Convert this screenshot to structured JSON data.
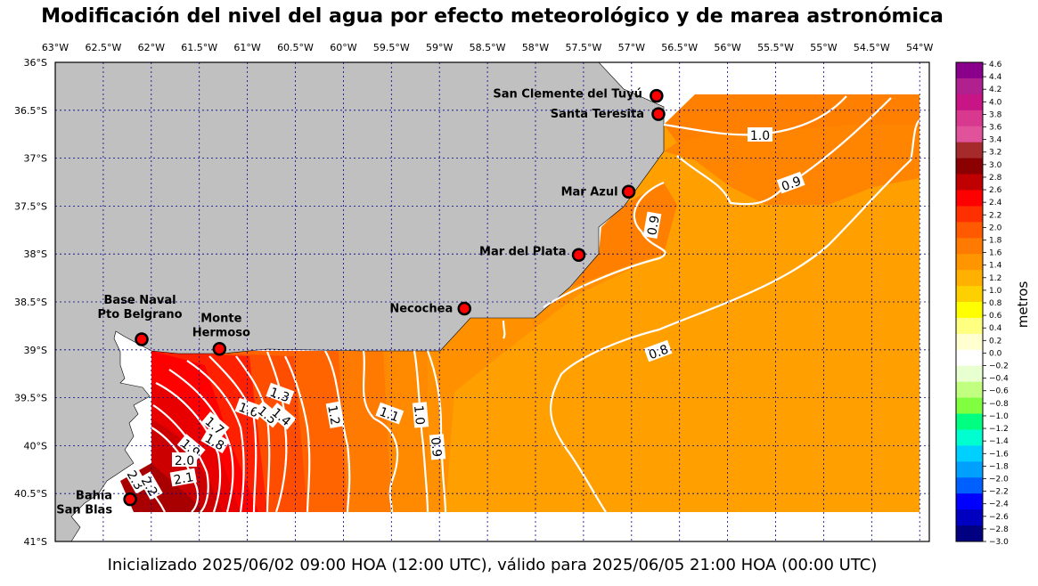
{
  "title": "Modificación del nivel del agua por efecto meteorológico y de marea astronómica",
  "footer": "Inicializado 2025/06/02 09:00 HOA (12:00 UTC), válido para 2025/06/05 21:00 HOA (00:00 UTC)",
  "lon_labels": [
    "63°W",
    "62.5°W",
    "62°W",
    "61.5°W",
    "61°W",
    "60.5°W",
    "60°W",
    "59.5°W",
    "59°W",
    "58.5°W",
    "58°W",
    "57.5°W",
    "57°W",
    "56.5°W",
    "56°W",
    "55.5°W",
    "55°W",
    "54.5°W",
    "54°W"
  ],
  "lat_labels": [
    "36°S",
    "36.5°S",
    "37°S",
    "37.5°S",
    "38°S",
    "38.5°S",
    "39°S",
    "39.5°S",
    "40°S",
    "40.5°S",
    "41°S"
  ],
  "cities": [
    {
      "name": "San Clemente del Tuyú",
      "lon": -56.74,
      "lat": -36.35
    },
    {
      "name": "Santa Teresita",
      "lon": -56.72,
      "lat": -36.54
    },
    {
      "name": "Mar Azul",
      "lon": -57.03,
      "lat": -37.35
    },
    {
      "name": "Mar del Plata",
      "lon": -57.55,
      "lat": -38.01
    },
    {
      "name": "Necochea",
      "lon": -58.74,
      "lat": -38.57
    },
    {
      "name": "Base Naval Pto Belgrano",
      "lon": -62.1,
      "lat": -38.89
    },
    {
      "name": "Monte Hermoso",
      "lon": -61.29,
      "lat": -38.99
    },
    {
      "name": "Bahía San Blas",
      "lon": -62.22,
      "lat": -40.56
    }
  ],
  "contour_labels": [
    "1.0",
    "0.9",
    "0.9",
    "0.8",
    "1.3",
    "1.6",
    "1.5",
    "1.4",
    "1.2",
    "1.1",
    "1.0",
    "0.9",
    "1.7",
    "1.8",
    "1.9",
    "2.0",
    "2.1",
    "2.3",
    "2.2"
  ],
  "colorbar": {
    "label": "metros",
    "ticks": [
      "4.6",
      "4.4",
      "4.2",
      "4.0",
      "3.8",
      "3.6",
      "3.4",
      "3.2",
      "3.0",
      "2.8",
      "2.6",
      "2.4",
      "2.2",
      "2.0",
      "1.8",
      "1.6",
      "1.4",
      "1.2",
      "1.0",
      "0.8",
      "0.6",
      "0.4",
      "0.2",
      "0.0",
      "−0.2",
      "−0.4",
      "−0.6",
      "−0.8",
      "−1.0",
      "−1.2",
      "−1.4",
      "−1.6",
      "−1.8",
      "−2.0",
      "−2.2",
      "−2.4",
      "−2.6",
      "−2.8",
      "−3.0"
    ],
    "colors": [
      "#8b008b",
      "#b0208e",
      "#c71585",
      "#d8398f",
      "#e0529a",
      "#a52a2a",
      "#8b0000",
      "#c00000",
      "#ff0000",
      "#ff3000",
      "#ff5a00",
      "#ff7a00",
      "#ff9600",
      "#ffb000",
      "#ffd000",
      "#ffff00",
      "#ffff80",
      "#ffffd0",
      "#ffffff",
      "#e8ffd0",
      "#c0ff80",
      "#80ff40",
      "#00ff80",
      "#00ffd0",
      "#00d0ff",
      "#00a0ff",
      "#0060ff",
      "#0000ff",
      "#0000c0",
      "#000080"
    ]
  },
  "colors": {
    "land": "#c0c0c0",
    "grid": "#00008b",
    "contour": "#ffffff",
    "marker": "#ff0000"
  }
}
